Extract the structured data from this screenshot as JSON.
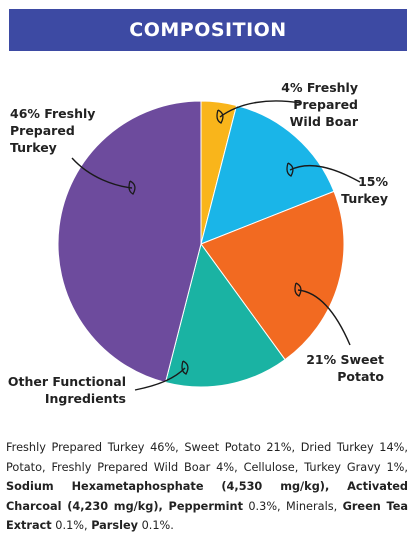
{
  "title": "COMPOSITION",
  "chart_data": {
    "type": "pie",
    "slices": [
      {
        "label_lines": [
          "4% Freshly",
          "Prepared",
          "Wild Boar"
        ],
        "value": 4,
        "color": "#f9b51b"
      },
      {
        "label_lines": [
          "15%",
          "Turkey"
        ],
        "value": 15,
        "color": "#1ab5e8"
      },
      {
        "label_lines": [
          "21% Sweet",
          "Potato"
        ],
        "value": 21,
        "color": "#f26a21"
      },
      {
        "label_lines": [
          "Other Functional",
          "Ingredients"
        ],
        "value": 14,
        "color": "#1ab3a3"
      },
      {
        "label_lines": [
          "46% Freshly",
          "Prepared",
          "Turkey"
        ],
        "value": 46,
        "color": "#6d4b9d"
      }
    ]
  },
  "ingredients": [
    {
      "text": "Freshly Prepared Turkey 46%, Sweet Potato 21%, Dried Turkey 14%, Potato, Freshly Prepared Wild Boar 4%, Cellulose, Turkey Gravy 1%, ",
      "bold": false
    },
    {
      "text": "Sodium Hexametaphosphate (4,530 mg/kg), Activated Charcoal (4,230 mg/kg), Peppermint",
      "bold": true
    },
    {
      "text": " 0.3%, Minerals, ",
      "bold": false
    },
    {
      "text": "Green Tea Extract",
      "bold": true
    },
    {
      "text": " 0.1%, ",
      "bold": false
    },
    {
      "text": "Parsley",
      "bold": true
    },
    {
      "text": " 0.1%.",
      "bold": false
    }
  ]
}
